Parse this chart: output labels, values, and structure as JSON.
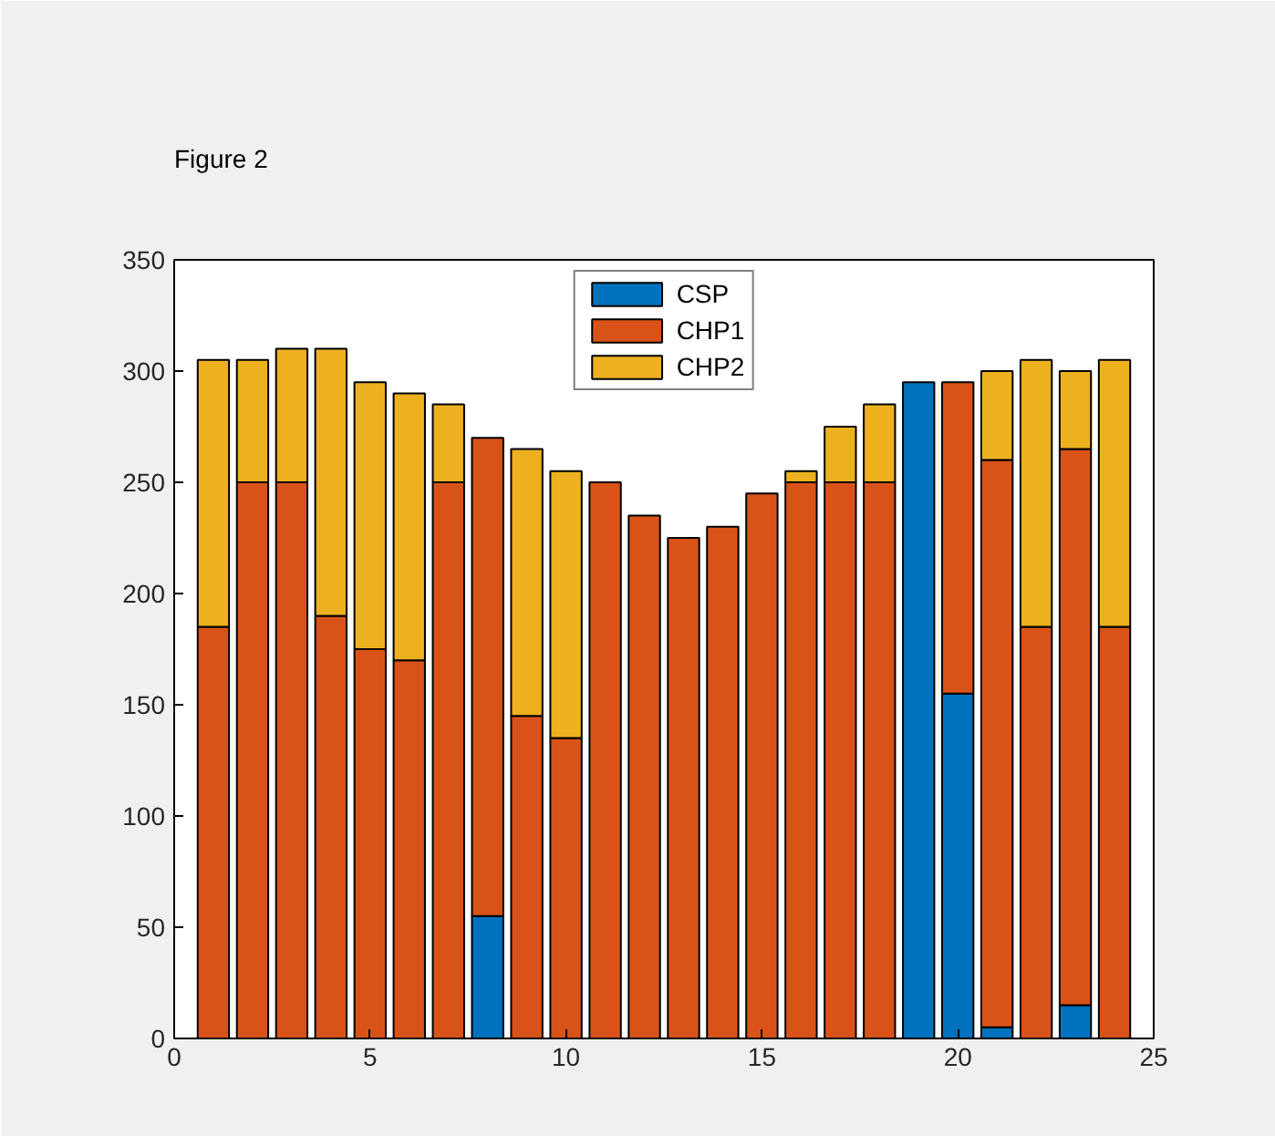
{
  "chart_data": {
    "type": "bar",
    "title": "Figure 2",
    "stacked": true,
    "legend": "top",
    "x": [
      1,
      2,
      3,
      4,
      5,
      6,
      7,
      8,
      9,
      10,
      11,
      12,
      13,
      14,
      15,
      16,
      17,
      18,
      19,
      20,
      21,
      22,
      23,
      24
    ],
    "xlim": [
      0,
      25
    ],
    "xticks": [
      0,
      5,
      10,
      15,
      20,
      25
    ],
    "ylim": [
      0,
      350
    ],
    "yticks": [
      0,
      50,
      100,
      150,
      200,
      250,
      300,
      350
    ],
    "series": [
      {
        "name": "CSP",
        "color": "#0072bd",
        "values": [
          0,
          0,
          0,
          0,
          0,
          0,
          0,
          55,
          0,
          0,
          0,
          0,
          0,
          0,
          0,
          0,
          0,
          0,
          295,
          155,
          5,
          0,
          15,
          0
        ]
      },
      {
        "name": "CHP1",
        "color": "#d95319",
        "values": [
          185,
          250,
          250,
          190,
          175,
          170,
          250,
          215,
          145,
          135,
          250,
          235,
          225,
          230,
          245,
          250,
          250,
          250,
          0,
          140,
          255,
          185,
          250,
          185
        ]
      },
      {
        "name": "CHP2",
        "color": "#edb120",
        "values": [
          120,
          55,
          60,
          120,
          120,
          120,
          35,
          0,
          120,
          120,
          0,
          0,
          0,
          0,
          0,
          5,
          25,
          35,
          0,
          0,
          40,
          120,
          35,
          120
        ]
      }
    ]
  }
}
